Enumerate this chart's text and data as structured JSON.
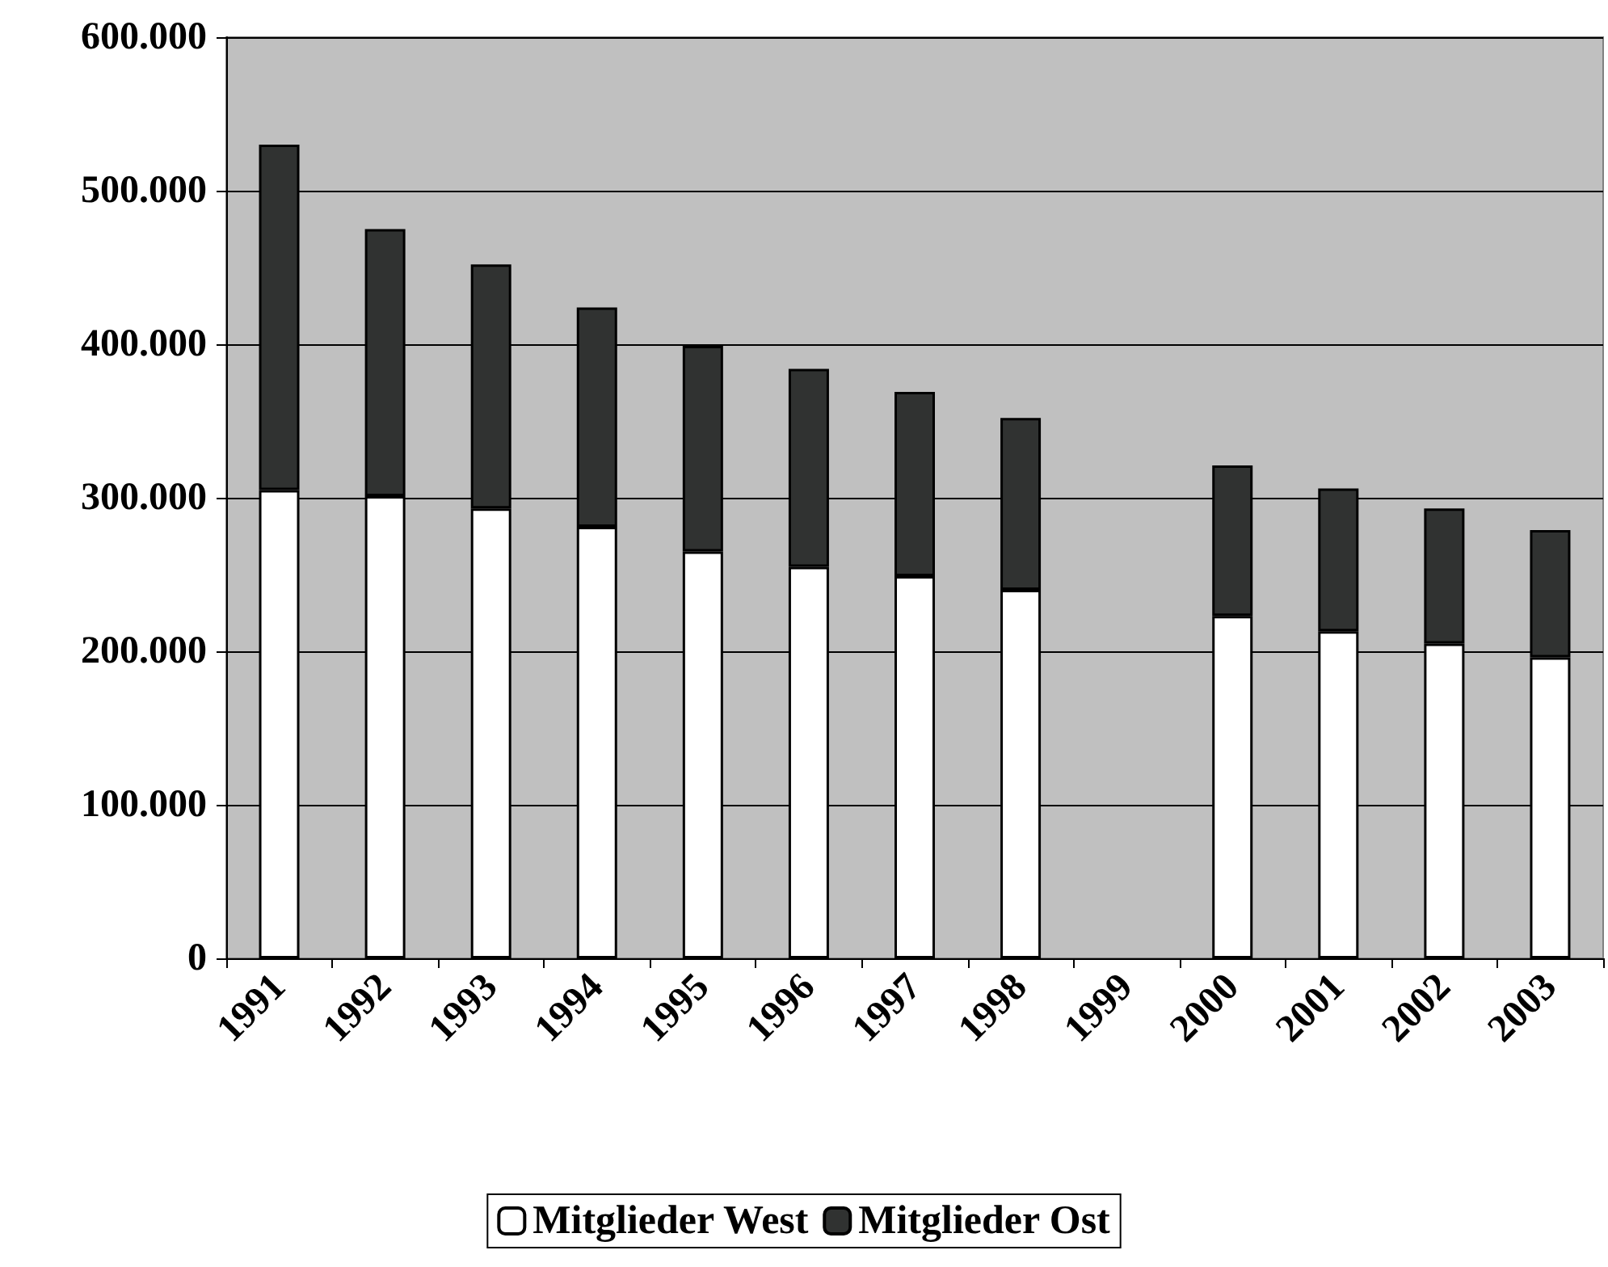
{
  "chart_data": {
    "type": "bar",
    "stacked": true,
    "categories": [
      "1991",
      "1992",
      "1993",
      "1994",
      "1995",
      "1996",
      "1997",
      "1998",
      "1999",
      "2000",
      "2001",
      "2002",
      "2003"
    ],
    "series": [
      {
        "name": "Mitglieder West",
        "color": "#ffffff",
        "values": [
          305000,
          301000,
          293000,
          281000,
          265000,
          255000,
          249000,
          240000,
          null,
          223000,
          213000,
          205000,
          196000
        ]
      },
      {
        "name": "Mitglieder Ost",
        "color": "#303231",
        "values": [
          225000,
          174000,
          159000,
          143000,
          134000,
          129000,
          120000,
          112000,
          null,
          98000,
          93000,
          88000,
          83000
        ]
      }
    ],
    "ylim": [
      0,
      600000
    ],
    "yticks": [
      {
        "value": 0,
        "label": "0"
      },
      {
        "value": 100000,
        "label": "100.000"
      },
      {
        "value": 200000,
        "label": "200.000"
      },
      {
        "value": 300000,
        "label": "300.000"
      },
      {
        "value": 400000,
        "label": "400.000"
      },
      {
        "value": 500000,
        "label": "500.000"
      },
      {
        "value": 600000,
        "label": "600.000"
      }
    ],
    "grid": "y",
    "legend": "bottom"
  }
}
